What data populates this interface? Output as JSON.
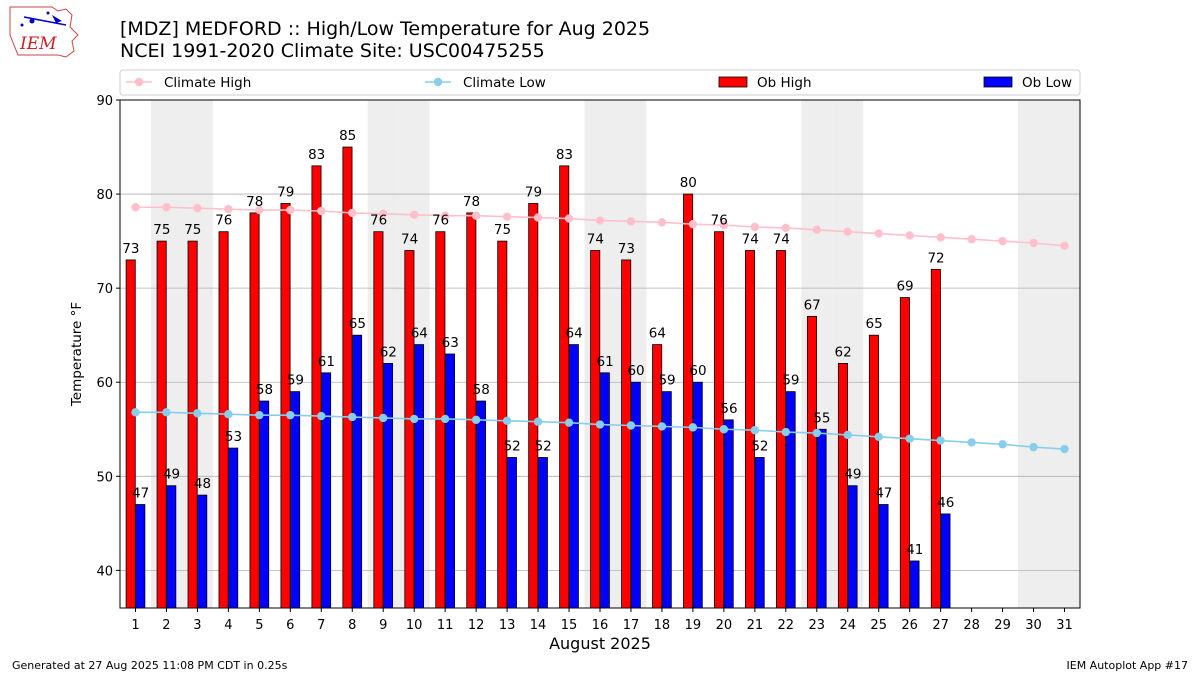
{
  "header": {
    "title": "[MDZ] MEDFORD :: High/Low Temperature for Aug 2025",
    "subtitle": "NCEI 1991-2020 Climate Site: USC00475255",
    "logo_text": "IEM"
  },
  "footer": {
    "generated": "Generated at 27 Aug 2025 11:08 PM CDT in 0.25s",
    "app": "IEM Autoplot App #17"
  },
  "colors": {
    "ob_high": "#ff0000",
    "ob_low": "#0000ff",
    "climate_high": "#ffc0cb",
    "climate_low": "#87ceeb",
    "weekend_shade": "#eeeeee"
  },
  "chart_data": {
    "type": "bar",
    "xlabel": "August 2025",
    "ylabel": "Temperature °F",
    "ylim": [
      36,
      90
    ],
    "yticks": [
      40,
      50,
      60,
      70,
      80,
      90
    ],
    "grid": "horizontal",
    "legend_placement": "top",
    "categories": [
      "1",
      "2",
      "3",
      "4",
      "5",
      "6",
      "7",
      "8",
      "9",
      "10",
      "11",
      "12",
      "13",
      "14",
      "15",
      "16",
      "17",
      "18",
      "19",
      "20",
      "21",
      "22",
      "23",
      "24",
      "25",
      "26",
      "27",
      "28",
      "29",
      "30",
      "31"
    ],
    "weekend_days": [
      2,
      3,
      9,
      10,
      16,
      17,
      23,
      24,
      30,
      31
    ],
    "series": [
      {
        "name": "Climate High",
        "kind": "line",
        "values": [
          78.6,
          78.6,
          78.5,
          78.4,
          78.3,
          78.3,
          78.2,
          78.0,
          77.9,
          77.8,
          77.7,
          77.7,
          77.6,
          77.5,
          77.4,
          77.2,
          77.1,
          77.0,
          76.8,
          76.7,
          76.5,
          76.4,
          76.2,
          76.0,
          75.8,
          75.6,
          75.4,
          75.2,
          75.0,
          74.8,
          74.5
        ]
      },
      {
        "name": "Climate Low",
        "kind": "line",
        "values": [
          56.8,
          56.8,
          56.7,
          56.6,
          56.5,
          56.5,
          56.4,
          56.3,
          56.2,
          56.1,
          56.1,
          56.0,
          55.9,
          55.8,
          55.7,
          55.5,
          55.4,
          55.3,
          55.2,
          55.0,
          54.9,
          54.7,
          54.6,
          54.4,
          54.2,
          54.0,
          53.8,
          53.6,
          53.4,
          53.1,
          52.9
        ]
      },
      {
        "name": "Ob High",
        "kind": "bar",
        "values": [
          73,
          75,
          75,
          76,
          78,
          79,
          83,
          85,
          76,
          74,
          76,
          78,
          75,
          79,
          83,
          74,
          73,
          64,
          80,
          76,
          74,
          74,
          67,
          62,
          65,
          69,
          72,
          null,
          null,
          null,
          null
        ]
      },
      {
        "name": "Ob Low",
        "kind": "bar",
        "values": [
          47,
          49,
          48,
          53,
          58,
          59,
          61,
          65,
          62,
          64,
          63,
          58,
          52,
          52,
          64,
          61,
          60,
          59,
          60,
          56,
          52,
          59,
          55,
          49,
          47,
          41,
          46,
          null,
          null,
          null,
          null
        ]
      }
    ]
  }
}
